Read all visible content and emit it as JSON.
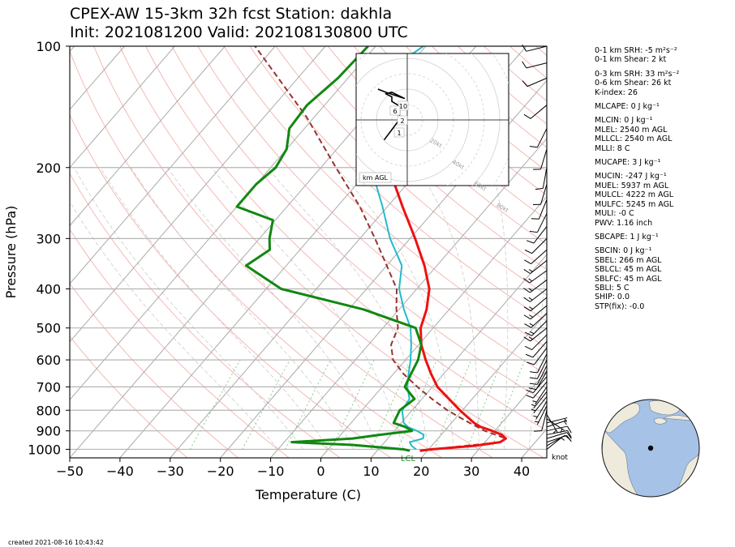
{
  "title": {
    "line1": "CPEX-AW 15-3km  32h fcst  Station: dakhla",
    "line2": "Init: 2021081200  Valid: 202108130800 UTC"
  },
  "created": "created 2021-08-16 10:43:42",
  "wind_unit": "knot",
  "lcl_label": "LCL",
  "hodograph": {
    "label": "km AGL",
    "ring_labels": [
      "20kt",
      "40kt",
      "60kt",
      "80kt"
    ],
    "height_labels": [
      "10",
      "6",
      "2",
      "1"
    ]
  },
  "stats": [
    "0-1 km SRH: -5 m²s⁻²",
    "0-1 km Shear: 2 kt",
    "0-3 km SRH: 33 m²s⁻²",
    "0-6 km Shear: 26 kt",
    "K-index: 26",
    "MLCAPE: 0 J kg⁻¹",
    "MLCIN: 0 J kg⁻¹",
    "MLEL: 2540 m AGL",
    "MLLCL: 2540 m AGL",
    "MLLI: 8 C",
    "MUCAPE: 3 J kg⁻¹",
    "MUCIN: -247 J kg⁻¹",
    "MUEL: 5937 m AGL",
    "MULCL: 4222 m AGL",
    "MULFC: 5245 m AGL",
    "MULI: -0 C",
    "PWV: 1.16 inch",
    "SBCAPE: 1 J kg⁻¹",
    "SBCIN: 0 J kg⁻¹",
    "SBEL: 266 m AGL",
    "SBLCL: 45 m AGL",
    "SBLFC: 45 m AGL",
    "SBLI: 5 C",
    "SHIP: 0.0",
    "STP(fix): -0.0"
  ],
  "colors": {
    "temperature": "#ee1111",
    "dewpoint": "#118811",
    "wetbulb": "#22bbcc",
    "parcel": "#993333",
    "dry_adiabat": "#f4b9b4",
    "isotherm": "#aaaaaa",
    "mixing_ratio": "#88cc88",
    "land": "#eeeadc",
    "ocean": "#a6c2e6",
    "station": "#118811"
  },
  "chart_data": {
    "type": "line",
    "xlabel": "Temperature (C)",
    "ylabel": "Pressure (hPa)",
    "xlim": [
      -50,
      45
    ],
    "ylim": [
      1050,
      100
    ],
    "yscale": "log",
    "xticks": [
      -50,
      -40,
      -30,
      -20,
      -10,
      0,
      10,
      20,
      30,
      40
    ],
    "xtick_labels": [
      "−50",
      "−40",
      "−30",
      "−20",
      "−10",
      "0",
      "10",
      "20",
      "30",
      "40"
    ],
    "yticks": [
      100,
      200,
      300,
      400,
      500,
      600,
      700,
      800,
      900,
      1000
    ],
    "ytick_labels": [
      "100",
      "200",
      "300",
      "400",
      "500",
      "600",
      "700",
      "800",
      "900",
      "1000"
    ],
    "grid": true,
    "series": [
      {
        "key": "temperature",
        "pressure": [
          1008,
          1000,
          980,
          960,
          940,
          920,
          900,
          880,
          860,
          800,
          700,
          650,
          600,
          550,
          500,
          450,
          400,
          350,
          300,
          250,
          200,
          170
        ],
        "value": [
          18.5,
          20.5,
          28.5,
          33,
          33.5,
          32,
          29.5,
          26.5,
          24.5,
          19.5,
          11,
          7.5,
          4,
          0.5,
          -2.5,
          -4.5,
          -7.5,
          -12.5,
          -19,
          -27,
          -36.5,
          -42.5
        ]
      },
      {
        "key": "dewpoint",
        "pressure": [
          1008,
          1000,
          975,
          960,
          940,
          920,
          900,
          880,
          860,
          800,
          750,
          700,
          650,
          600,
          550,
          500,
          450,
          400,
          350,
          320,
          300,
          270,
          250,
          220,
          200,
          180,
          160,
          140,
          120,
          100
        ],
        "value": [
          16.5,
          15,
          4,
          -8.5,
          3,
          8,
          13.5,
          11.5,
          8.5,
          7.5,
          8.5,
          4.5,
          3.5,
          2.5,
          0.5,
          -3.5,
          -17,
          -37,
          -48,
          -46,
          -48,
          -50.5,
          -60,
          -60,
          -59,
          -60,
          -63,
          -63.5,
          -62,
          -61.5
        ]
      },
      {
        "key": "wetbulb",
        "pressure": [
          1000,
          980,
          960,
          940,
          920,
          900,
          880,
          860,
          800,
          750,
          700,
          650,
          600,
          550,
          500,
          450,
          400,
          350,
          300,
          250,
          200,
          170,
          140,
          120,
          100
        ],
        "value": [
          17.5,
          16,
          15,
          17,
          16.5,
          14.5,
          12,
          10.5,
          8,
          7.5,
          5,
          3,
          1,
          -1.5,
          -4.5,
          -9,
          -13.5,
          -17,
          -24,
          -31,
          -40,
          -47,
          -52,
          -54,
          -50.5
        ]
      },
      {
        "key": "parcel",
        "pressure": [
          1008,
          1000,
          960,
          940,
          900,
          850,
          800,
          750,
          700,
          650,
          600,
          550,
          500,
          450,
          400,
          350,
          300,
          250,
          200,
          150,
          100
        ],
        "value": [
          18.5,
          20.5,
          33,
          33.5,
          28,
          22.5,
          17,
          12,
          7,
          2,
          -2.5,
          -5.5,
          -7,
          -10.5,
          -14,
          -20,
          -27,
          -35.5,
          -47,
          -61.5,
          -84
        ]
      }
    ],
    "wind_barbs": {
      "pressure": [
        1000,
        980,
        960,
        940,
        920,
        900,
        880,
        860,
        840,
        820,
        800,
        780,
        760,
        740,
        720,
        700,
        680,
        660,
        640,
        620,
        600,
        580,
        560,
        540,
        520,
        500,
        480,
        460,
        440,
        420,
        400,
        380,
        360,
        340,
        320,
        300,
        280,
        260,
        240,
        220,
        200,
        180,
        160,
        140,
        120,
        110,
        100
      ],
      "u_kt": [
        -5,
        -7,
        -9,
        -10,
        -10,
        -9,
        -6,
        -4,
        -3,
        -3,
        2,
        3,
        3,
        4,
        4,
        4,
        5,
        5,
        4,
        4,
        4,
        4,
        6,
        7,
        8,
        10,
        10,
        11,
        12,
        12,
        13,
        12,
        11,
        10,
        9,
        8,
        7,
        5,
        4,
        3,
        2,
        3,
        4,
        6,
        7,
        8,
        8
      ],
      "v_kt": [
        -4,
        -4,
        -3,
        -3,
        -2,
        -2,
        -2,
        -1,
        2,
        5,
        8,
        6,
        5,
        5,
        5,
        6,
        6,
        6,
        7,
        8,
        8,
        8,
        8,
        8,
        8,
        8,
        10,
        10,
        10,
        10,
        10,
        9,
        8,
        8,
        8,
        8,
        9,
        10,
        10,
        10,
        11,
        10,
        8,
        5,
        3,
        2,
        2
      ]
    }
  }
}
